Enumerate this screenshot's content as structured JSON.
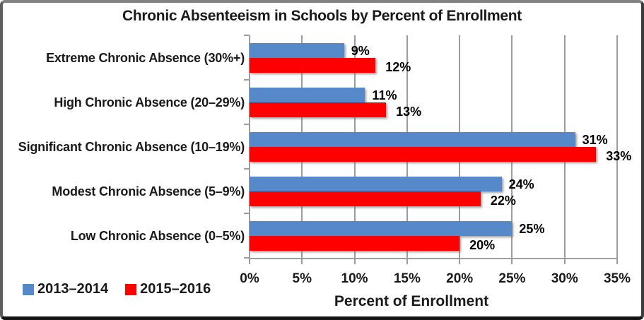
{
  "chart_data": {
    "type": "bar",
    "orientation": "horizontal",
    "title": "Chronic Absenteeism in Schools by Percent of Enrollment",
    "xlabel": "Percent of Enrollment",
    "categories": [
      "Extreme Chronic Absence (30%+)",
      "High Chronic Absence (20–29%)",
      "Significant Chronic Absence (10–19%)",
      "Modest Chronic Absence (5–9%)",
      "Low Chronic Absence (0–5%)"
    ],
    "series": [
      {
        "name": "2013–2014",
        "color": "#5689CA",
        "values": [
          9,
          11,
          31,
          24,
          25
        ]
      },
      {
        "name": "2015–2016",
        "color": "#FF0000",
        "values": [
          12,
          13,
          33,
          22,
          20
        ]
      }
    ],
    "data_labels": [
      [
        "9%",
        "11%",
        "31%",
        "24%",
        "25%"
      ],
      [
        "12%",
        "13%",
        "33%",
        "22%",
        "20%"
      ]
    ],
    "value_suffix": "%",
    "xlim": [
      0,
      35
    ],
    "xtick_step": 5,
    "xticks": [
      "0%",
      "5%",
      "10%",
      "15%",
      "20%",
      "25%",
      "30%",
      "35%"
    ],
    "grid": true,
    "legend_position": "bottom-left",
    "colors": {
      "gridline": "#9d9d9d",
      "axis": "#9d9d9d",
      "text": "#000000",
      "background": "#ffffff"
    }
  }
}
